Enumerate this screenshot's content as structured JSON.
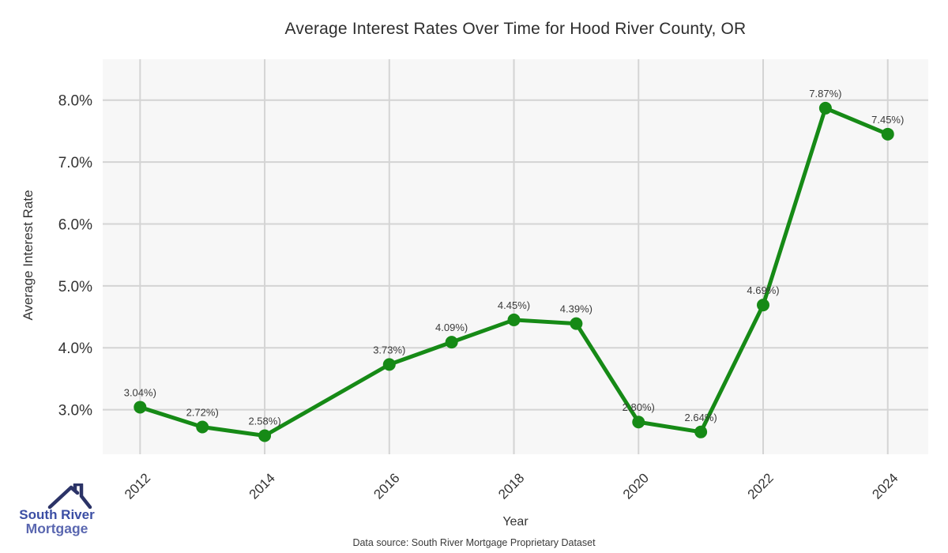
{
  "title": "Average Interest Rates Over Time for Hood River County, OR",
  "chart_data": {
    "type": "line",
    "title": "Average Interest Rates Over Time for Hood River County, OR",
    "xlabel": "Year",
    "ylabel": "Average Interest Rate",
    "x": [
      2012,
      2013,
      2014,
      2016,
      2017,
      2018,
      2019,
      2020,
      2021,
      2022,
      2023,
      2024
    ],
    "values": [
      3.04,
      2.72,
      2.58,
      3.73,
      4.09,
      4.45,
      4.39,
      2.8,
      2.64,
      4.69,
      7.87,
      7.45
    ],
    "point_labels": [
      "3.04%)",
      "2.72%)",
      "2.58%)",
      "3.73%)",
      "4.09%)",
      "4.45%)",
      "4.39%)",
      "2.80%)",
      "2.64%)",
      "4.69%)",
      "7.87%)",
      "7.45%)"
    ],
    "x_ticks": [
      2012,
      2014,
      2016,
      2018,
      2020,
      2022,
      2024
    ],
    "x_tick_labels": [
      "2012",
      "2014",
      "2016",
      "2018",
      "2020",
      "2022",
      "2024"
    ],
    "y_ticks": [
      3,
      4,
      5,
      6,
      7,
      8
    ],
    "y_tick_labels": [
      "3.0%",
      "4.0%",
      "5.0%",
      "6.0%",
      "7.0%",
      "8.0%"
    ],
    "xlim": [
      2011.4,
      2024.65
    ],
    "ylim": [
      2.28,
      8.66
    ],
    "grid": true,
    "legend": "none",
    "line_color": "#168a16",
    "marker_color": "#168a16",
    "plot_bg": "#f7f7f7",
    "grid_color": "#d4d4d4",
    "tick_color": "#333333",
    "point_label_color": "#3a3a3a"
  },
  "footer": {
    "data_source": "Data source: South River Mortgage Proprietary Dataset"
  },
  "logo": {
    "line1": "South River",
    "line2": "Mortgage",
    "colors": {
      "roof": "#2b3367",
      "line1": "#3b4ea4",
      "line2": "#5a67b0"
    }
  }
}
